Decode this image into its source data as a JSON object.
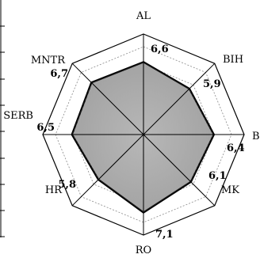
{
  "chart_data": {
    "type": "radar",
    "title": "",
    "axes": [
      "AL",
      "BIH",
      "B",
      "MK",
      "RO",
      "HR",
      "SERB",
      "MNTR"
    ],
    "series": [
      {
        "name": "",
        "values": [
          6.6,
          5.9,
          6.4,
          6.1,
          7.1,
          5.8,
          6.5,
          6.7
        ],
        "value_labels": [
          "6,6",
          "5,9",
          "6,4",
          "6,1",
          "7,1",
          "5,8",
          "6,5",
          "6,7"
        ]
      }
    ],
    "rmax": 8,
    "rings": 5,
    "grid": true,
    "colors": {
      "fill": "#a7a7a7",
      "fill_light": "#d6d6d6",
      "outline": "#000000",
      "grid": "#8a8a8a"
    }
  }
}
